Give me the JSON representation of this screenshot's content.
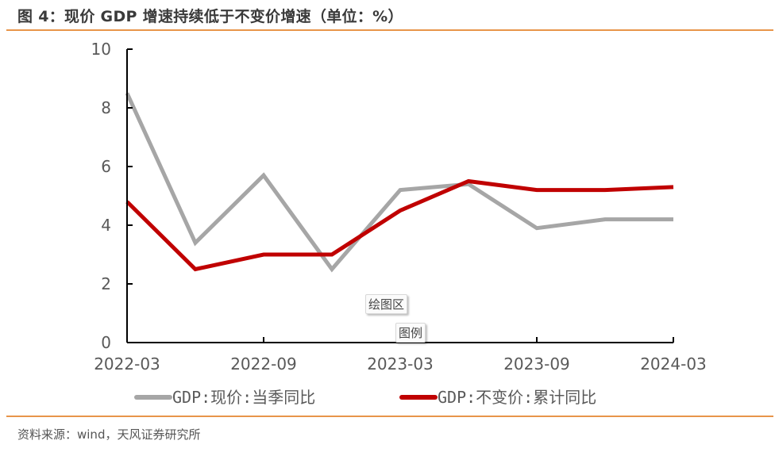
{
  "title": "图 4：现价 GDP 增速持续低于不变价增速（单位：%）",
  "source": "资料来源：wind，天风证券研究所",
  "overlays": {
    "plot_area_tip": "绘图区",
    "legend_tip": "图例"
  },
  "colors": {
    "rule": "#E8954A",
    "series_gray": "#A6A6A6",
    "series_red": "#C00000",
    "axis": "#000000"
  },
  "chart_data": {
    "type": "line",
    "title": "现价 GDP 增速持续低于不变价增速（单位：%）",
    "xlabel": "",
    "ylabel": "",
    "x": [
      "2022-03",
      "2022-06",
      "2022-09",
      "2022-12",
      "2023-03",
      "2023-06",
      "2023-09",
      "2023-12",
      "2024-03"
    ],
    "x_tick_labels": [
      "2022-03",
      "2022-09",
      "2023-03",
      "2023-09",
      "2024-03"
    ],
    "y_tick_labels": [
      "0",
      "2",
      "4",
      "6",
      "8",
      "10"
    ],
    "ylim": [
      0,
      10
    ],
    "grid": false,
    "legend_position": "bottom",
    "series": [
      {
        "name": "GDP:现价:当季同比",
        "color": "#A6A6A6",
        "values": [
          8.5,
          3.4,
          5.7,
          2.5,
          5.2,
          5.4,
          3.9,
          4.2,
          4.2
        ]
      },
      {
        "name": "GDP:不变价:累计同比",
        "color": "#C00000",
        "values": [
          4.8,
          2.5,
          3.0,
          3.0,
          4.5,
          5.5,
          5.2,
          5.2,
          5.3
        ]
      }
    ]
  }
}
